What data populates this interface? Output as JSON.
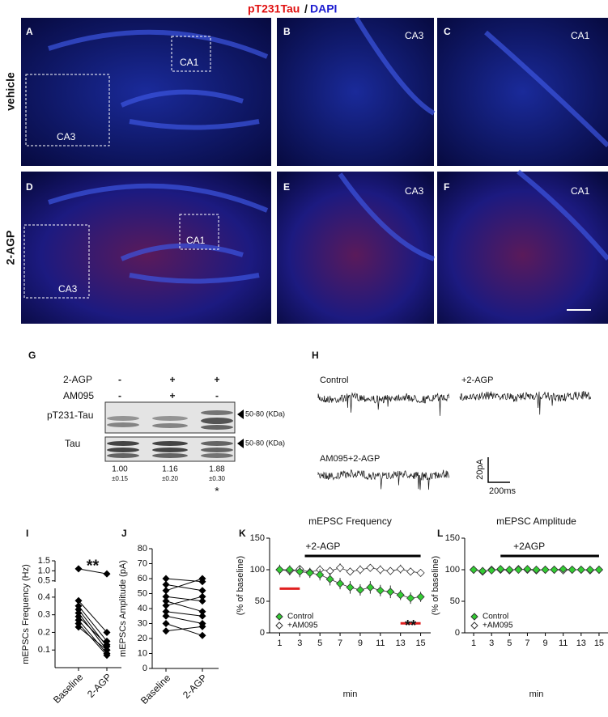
{
  "figure": {
    "title_red": "pT231Tau",
    "title_sep": "/",
    "title_blue": "DAPI",
    "row_labels": [
      "vehicle",
      "2-AGP"
    ],
    "micrographs": [
      {
        "letter": "A",
        "regions": [
          "CA1",
          "CA3"
        ]
      },
      {
        "letter": "B",
        "region": "CA3"
      },
      {
        "letter": "C",
        "region": "CA1"
      },
      {
        "letter": "D",
        "regions": [
          "CA1",
          "CA3"
        ]
      },
      {
        "letter": "E",
        "region": "CA3"
      },
      {
        "letter": "F",
        "region": "CA1"
      }
    ],
    "blot": {
      "letter": "G",
      "conditions": [
        {
          "label": "2-AGP",
          "signs": [
            "-",
            "+",
            "+"
          ]
        },
        {
          "label": "AM095",
          "signs": [
            "-",
            "+",
            "-"
          ]
        }
      ],
      "bands": [
        {
          "label": "pT231-Tau",
          "size": "50-80 (KDa)"
        },
        {
          "label": "Tau",
          "size": "50-80 (KDa)"
        }
      ],
      "quant": [
        "1.00",
        "1.16",
        "1.88"
      ],
      "sd": [
        "±0.15",
        "±0.20",
        "±0.30"
      ],
      "significance": "*"
    },
    "traces": {
      "letter": "H",
      "labels": [
        "Control",
        "+2-AGP",
        "AM095+2-AGP"
      ],
      "scale_y": "20pA",
      "scale_x": "200ms"
    }
  },
  "chart_data": [
    {
      "type": "paired",
      "letter": "I",
      "ylabel": "mEPSCs Frequency (Hz)",
      "categories": [
        "Baseline",
        "2-AGP"
      ],
      "ylim": [
        0,
        1.5
      ],
      "yticks": [
        0.1,
        0.2,
        0.3,
        0.4,
        0.5,
        {
          "value": 1,
          "label": "1.0"
        },
        1.5
      ],
      "axis_break": 0.45,
      "annotation": "**",
      "color": "#000000",
      "series": [
        {
          "values": [
            1.1,
            0.85
          ]
        },
        {
          "values": [
            0.38,
            0.2
          ]
        },
        {
          "values": [
            0.35,
            0.15
          ]
        },
        {
          "values": [
            0.33,
            0.12
          ]
        },
        {
          "values": [
            0.31,
            0.1
          ]
        },
        {
          "values": [
            0.29,
            0.13
          ]
        },
        {
          "values": [
            0.27,
            0.08
          ]
        },
        {
          "values": [
            0.25,
            0.07
          ]
        },
        {
          "values": [
            0.23,
            0.1
          ]
        }
      ]
    },
    {
      "type": "paired",
      "letter": "J",
      "ylabel": "mEPSCs Amplitude (pA)",
      "categories": [
        "Baseline",
        "2-AGP"
      ],
      "ylim": [
        0,
        80
      ],
      "yticks": [
        0,
        10,
        20,
        30,
        40,
        50,
        60,
        70,
        80
      ],
      "color": "#000000",
      "series": [
        {
          "values": [
            60,
            58
          ]
        },
        {
          "values": [
            56,
            52
          ]
        },
        {
          "values": [
            52,
            60
          ]
        },
        {
          "values": [
            48,
            45
          ]
        },
        {
          "values": [
            45,
            38
          ]
        },
        {
          "values": [
            42,
            48
          ]
        },
        {
          "values": [
            38,
            35
          ]
        },
        {
          "values": [
            35,
            30
          ]
        },
        {
          "values": [
            30,
            22
          ]
        },
        {
          "values": [
            25,
            28
          ]
        }
      ]
    },
    {
      "type": "line",
      "letter": "K",
      "title": "mEPSC Frequency",
      "ylabel": "(% of baseline)",
      "xlabel": "min",
      "x": [
        1,
        2,
        3,
        4,
        5,
        6,
        7,
        8,
        9,
        10,
        11,
        12,
        13,
        14,
        15
      ],
      "xlim": [
        0,
        16
      ],
      "xticks": [
        1,
        3,
        5,
        7,
        9,
        11,
        13,
        15
      ],
      "ylim": [
        0,
        150
      ],
      "yticks": [
        0,
        50,
        100,
        150
      ],
      "annotations": [
        "+2-AGP",
        "**"
      ],
      "series": [
        {
          "name": "Control",
          "color": "#33cc33",
          "values": [
            100,
            100,
            97,
            95,
            92,
            85,
            78,
            72,
            68,
            72,
            67,
            65,
            60,
            55,
            57
          ],
          "errors": [
            8,
            7,
            9,
            8,
            9,
            10,
            9,
            10,
            9,
            10,
            9,
            10,
            8,
            9,
            8
          ]
        },
        {
          "name": "+AM095",
          "color": "#ffffff",
          "values": [
            100,
            98,
            101,
            96,
            100,
            98,
            103,
            97,
            100,
            103,
            100,
            98,
            101,
            97,
            95
          ],
          "errors": [
            6,
            7,
            6,
            6,
            7,
            6,
            7,
            6,
            7,
            6,
            7,
            6,
            7,
            6,
            6
          ]
        }
      ]
    },
    {
      "type": "line",
      "letter": "L",
      "title": "mEPSC Amplitude",
      "ylabel": "(% of baseline)",
      "xlabel": "min",
      "x": [
        1,
        2,
        3,
        4,
        5,
        6,
        7,
        8,
        9,
        10,
        11,
        12,
        13,
        14,
        15
      ],
      "xlim": [
        0,
        16
      ],
      "xticks": [
        1,
        3,
        5,
        7,
        9,
        11,
        13,
        15
      ],
      "ylim": [
        0,
        150
      ],
      "yticks": [
        0,
        50,
        100,
        150
      ],
      "annotations": [
        "+2AGP"
      ],
      "series": [
        {
          "name": "Control",
          "color": "#33cc33",
          "values": [
            100,
            98,
            99,
            101,
            100,
            100,
            101,
            100,
            100,
            100,
            101,
            100,
            100,
            100,
            100
          ],
          "errors": [
            6,
            6,
            5,
            5,
            5,
            5,
            5,
            5,
            5,
            5,
            5,
            5,
            5,
            5,
            5
          ]
        },
        {
          "name": "+AM095",
          "color": "#ffffff",
          "values": [
            100,
            97,
            100,
            100,
            99,
            101,
            100,
            99,
            100,
            100,
            99,
            100,
            100,
            99,
            100
          ],
          "errors": [
            6,
            6,
            5,
            5,
            5,
            5,
            5,
            5,
            5,
            5,
            5,
            5,
            5,
            5,
            5
          ]
        }
      ]
    }
  ]
}
